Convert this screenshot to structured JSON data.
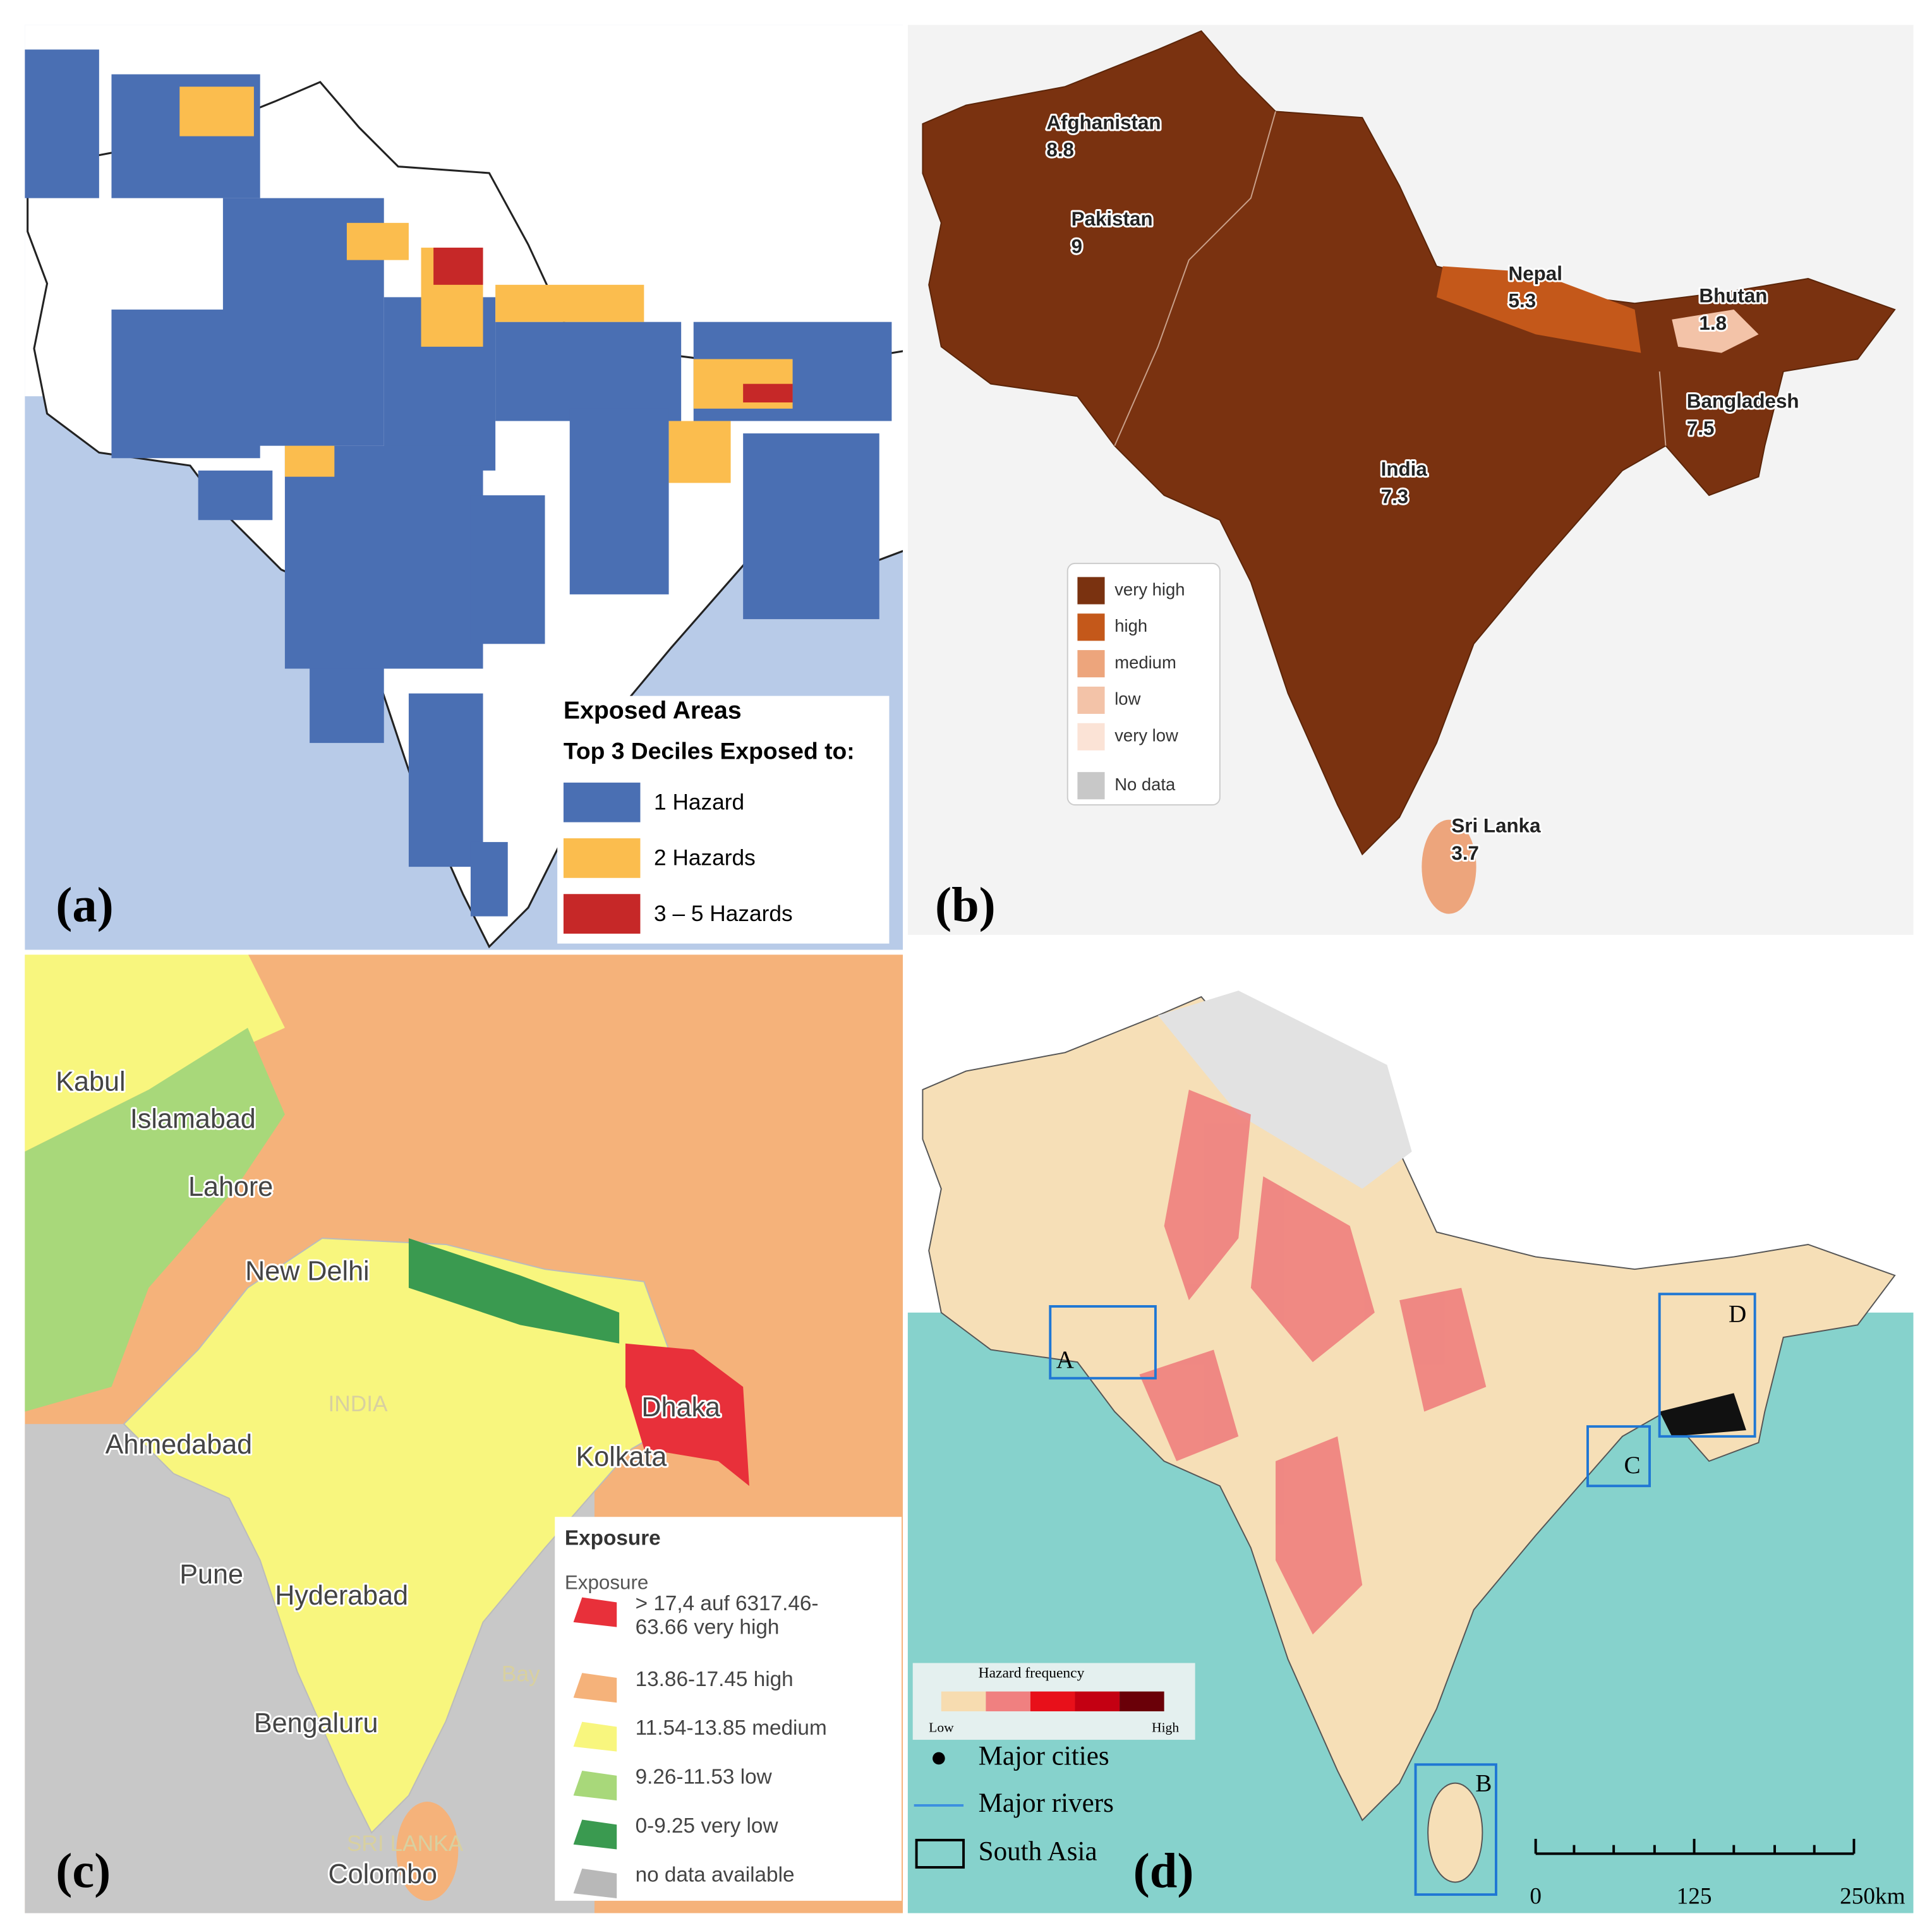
{
  "panels": [
    {
      "label": "(a)",
      "legend": {
        "title": "Exposed Areas",
        "subtitle": "Top 3 Deciles Exposed to:",
        "items": [
          {
            "label": "1 Hazard",
            "color": "#4a6fb3"
          },
          {
            "label": "2 Hazards",
            "color": "#fbbd4e"
          },
          {
            "label": "3 – 5 Hazards",
            "color": "#c62828"
          }
        ]
      }
    },
    {
      "label": "(b)",
      "countries": [
        {
          "name": "Afghanistan",
          "value": "8.8"
        },
        {
          "name": "Pakistan",
          "value": "9"
        },
        {
          "name": "Nepal",
          "value": "5.3"
        },
        {
          "name": "Bhutan",
          "value": "1.8"
        },
        {
          "name": "Bangladesh",
          "value": "7.5"
        },
        {
          "name": "India",
          "value": "7.3"
        },
        {
          "name": "Sri Lanka",
          "value": "3.7"
        }
      ],
      "legend": {
        "items": [
          {
            "label": "very high",
            "color": "#7a3210"
          },
          {
            "label": "high",
            "color": "#c4581a"
          },
          {
            "label": "medium",
            "color": "#eda57c"
          },
          {
            "label": "low",
            "color": "#f3c3a8"
          },
          {
            "label": "very low",
            "color": "#fbe3d6"
          },
          {
            "label": "No data",
            "color": "#c8c8c8"
          }
        ]
      }
    },
    {
      "label": "(c)",
      "cities": [
        "Kabul",
        "Islamabad",
        "Lahore",
        "New Delhi",
        "Ahmedabad",
        "Kolkata",
        "Dhaka",
        "Pune",
        "Hyderabad",
        "Bengaluru",
        "Colombo"
      ],
      "faint_labels": [
        "INDIA",
        "SRI LANKA",
        "Bay"
      ],
      "legend": {
        "title": "Exposure",
        "subtitle": "Exposure",
        "items": [
          {
            "lines": [
              "> 17,4 auf 6317.46-",
              "63.66 very high"
            ],
            "color": "#e8303a"
          },
          {
            "lines": [
              "13.86-17.45 high"
            ],
            "color": "#f5b27a"
          },
          {
            "lines": [
              "11.54-13.85 medium"
            ],
            "color": "#f8f67e"
          },
          {
            "lines": [
              "9.26-11.53 low"
            ],
            "color": "#a8d87a"
          },
          {
            "lines": [
              "0-9.25 very low"
            ],
            "color": "#3a9a50"
          },
          {
            "lines": [
              "no data available"
            ],
            "color": "#b8b8b8"
          }
        ]
      }
    },
    {
      "label": "(d)",
      "legend": {
        "title": "Hazard frequency",
        "low": "Low",
        "high": "High",
        "ramp": [
          "#f7dcb0",
          "#f08080",
          "#e8101a",
          "#c40012",
          "#6a0008"
        ],
        "items": [
          "Major cities",
          "Major rivers",
          "South Asia"
        ]
      },
      "boxes": [
        "A",
        "B",
        "C",
        "D"
      ],
      "scale": [
        "0",
        "125",
        "250km"
      ]
    }
  ]
}
